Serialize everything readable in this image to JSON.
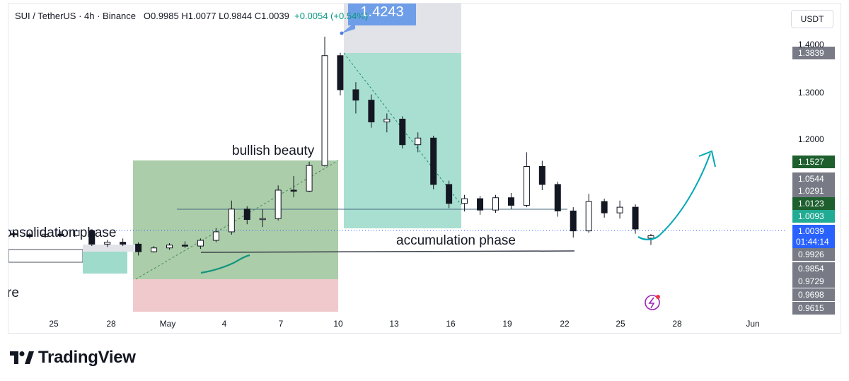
{
  "header": {
    "symbol": "SUI / TetherUS · 4h · Binance",
    "ohlc": "O0.9985  H1.0077  L0.9844  C1.0039",
    "change": "+0.0054 (+0.54%)"
  },
  "currency_button": "USDT",
  "logo_text": "TradingView",
  "chart_data": {
    "type": "candlestick",
    "symbol": "SUI / TetherUS",
    "interval": "4h",
    "exchange": "Binance",
    "x_tick_labels": [
      "25",
      "28",
      "May",
      "4",
      "7",
      "10",
      "13",
      "16",
      "19",
      "22",
      "25",
      "28",
      "Jun"
    ],
    "y_tick_labels": [
      "1.4000",
      "1.3000",
      "1.2000"
    ],
    "price_tags": [
      {
        "value": "1.3839",
        "color": "#787b86"
      },
      {
        "value": "1.1527",
        "color": "#1e5f2e"
      },
      {
        "value": "1.0544",
        "color": "#787b86"
      },
      {
        "value": "1.0291",
        "color": "#787b86"
      },
      {
        "value": "1.0123",
        "color": "#1e5f2e"
      },
      {
        "value": "1.0093",
        "color": "#22ab94"
      },
      {
        "value": "1.0039",
        "color": "#2962ff"
      },
      {
        "value": "0.9926",
        "color": "#787b86"
      },
      {
        "value": "0.9854",
        "color": "#787b86"
      },
      {
        "value": "0.9729",
        "color": "#787b86"
      },
      {
        "value": "0.9698",
        "color": "#787b86"
      },
      {
        "value": "0.9615",
        "color": "#787b86"
      }
    ],
    "countdown": "01:44:14",
    "target_label": "1.4243",
    "annotations": [
      {
        "text": "bullish beauty"
      },
      {
        "text": "onsolidation phase"
      },
      {
        "text": "accumulation phase"
      },
      {
        "text": "re"
      }
    ],
    "ohlc": [
      {
        "date": "Apr 23",
        "o": 1.008,
        "h": 1.012,
        "l": 1.0,
        "c": 1.006
      },
      {
        "date": "Apr 24",
        "o": 1.006,
        "h": 1.01,
        "l": 0.998,
        "c": 1.002
      },
      {
        "date": "Apr 25",
        "o": 1.002,
        "h": 1.011,
        "l": 0.999,
        "c": 1.007
      },
      {
        "date": "Apr 26",
        "o": 1.007,
        "h": 1.013,
        "l": 1.001,
        "c": 1.004
      },
      {
        "date": "Apr 27",
        "o": 1.004,
        "h": 1.018,
        "l": 1.002,
        "c": 1.014
      },
      {
        "date": "Apr 27",
        "o": 1.014,
        "h": 1.016,
        "l": 0.982,
        "c": 0.986
      },
      {
        "date": "Apr 28",
        "o": 0.986,
        "h": 0.995,
        "l": 0.98,
        "c": 0.99
      },
      {
        "date": "Apr 29",
        "o": 0.99,
        "h": 0.998,
        "l": 0.982,
        "c": 0.986
      },
      {
        "date": "Apr 30",
        "o": 0.986,
        "h": 0.99,
        "l": 0.962,
        "c": 0.97
      },
      {
        "date": "May 1",
        "o": 0.97,
        "h": 0.982,
        "l": 0.968,
        "c": 0.978
      },
      {
        "date": "May 2",
        "o": 0.978,
        "h": 0.988,
        "l": 0.974,
        "c": 0.984
      },
      {
        "date": "May 3",
        "o": 0.984,
        "h": 0.992,
        "l": 0.978,
        "c": 0.982
      },
      {
        "date": "May 4",
        "o": 0.982,
        "h": 0.998,
        "l": 0.976,
        "c": 0.994
      },
      {
        "date": "May 5",
        "o": 0.994,
        "h": 1.02,
        "l": 0.99,
        "c": 1.012
      },
      {
        "date": "May 6",
        "o": 1.012,
        "h": 1.078,
        "l": 1.006,
        "c": 1.06
      },
      {
        "date": "May 7",
        "o": 1.06,
        "h": 1.066,
        "l": 1.028,
        "c": 1.038
      },
      {
        "date": "May 8",
        "o": 1.038,
        "h": 1.06,
        "l": 1.022,
        "c": 1.04
      },
      {
        "date": "May 8",
        "o": 1.04,
        "h": 1.11,
        "l": 1.036,
        "c": 1.1
      },
      {
        "date": "May 9",
        "o": 1.1,
        "h": 1.13,
        "l": 1.085,
        "c": 1.098
      },
      {
        "date": "May 10",
        "o": 1.098,
        "h": 1.16,
        "l": 1.096,
        "c": 1.152
      },
      {
        "date": "May 10",
        "o": 1.152,
        "h": 1.424,
        "l": 1.15,
        "c": 1.384
      },
      {
        "date": "May 11",
        "o": 1.384,
        "h": 1.39,
        "l": 1.3,
        "c": 1.312
      },
      {
        "date": "May 12",
        "o": 1.312,
        "h": 1.328,
        "l": 1.262,
        "c": 1.29
      },
      {
        "date": "May 13",
        "o": 1.29,
        "h": 1.302,
        "l": 1.232,
        "c": 1.244
      },
      {
        "date": "May 13",
        "o": 1.244,
        "h": 1.262,
        "l": 1.222,
        "c": 1.25
      },
      {
        "date": "May 14",
        "o": 1.25,
        "h": 1.256,
        "l": 1.188,
        "c": 1.196
      },
      {
        "date": "May 15",
        "o": 1.196,
        "h": 1.222,
        "l": 1.18,
        "c": 1.21
      },
      {
        "date": "May 15",
        "o": 1.21,
        "h": 1.215,
        "l": 1.102,
        "c": 1.112
      },
      {
        "date": "May 16",
        "o": 1.112,
        "h": 1.12,
        "l": 1.062,
        "c": 1.072
      },
      {
        "date": "May 17",
        "o": 1.072,
        "h": 1.09,
        "l": 1.055,
        "c": 1.082
      },
      {
        "date": "May 18",
        "o": 1.082,
        "h": 1.088,
        "l": 1.048,
        "c": 1.058
      },
      {
        "date": "May 19",
        "o": 1.058,
        "h": 1.09,
        "l": 1.052,
        "c": 1.084
      },
      {
        "date": "May 20",
        "o": 1.084,
        "h": 1.094,
        "l": 1.06,
        "c": 1.068
      },
      {
        "date": "May 20",
        "o": 1.068,
        "h": 1.18,
        "l": 1.064,
        "c": 1.15
      },
      {
        "date": "May 21",
        "o": 1.15,
        "h": 1.162,
        "l": 1.1,
        "c": 1.112
      },
      {
        "date": "May 22",
        "o": 1.112,
        "h": 1.118,
        "l": 1.044,
        "c": 1.056
      },
      {
        "date": "May 22",
        "o": 1.056,
        "h": 1.064,
        "l": 1.0,
        "c": 1.014
      },
      {
        "date": "May 23",
        "o": 1.014,
        "h": 1.092,
        "l": 1.01,
        "c": 1.076
      },
      {
        "date": "May 24",
        "o": 1.076,
        "h": 1.082,
        "l": 1.042,
        "c": 1.052
      },
      {
        "date": "May 25",
        "o": 1.052,
        "h": 1.078,
        "l": 1.04,
        "c": 1.064
      },
      {
        "date": "May 26",
        "o": 1.064,
        "h": 1.07,
        "l": 1.008,
        "c": 1.018
      },
      {
        "date": "May 26",
        "o": 0.9985,
        "h": 1.0077,
        "l": 0.9844,
        "c": 1.0039
      }
    ]
  }
}
